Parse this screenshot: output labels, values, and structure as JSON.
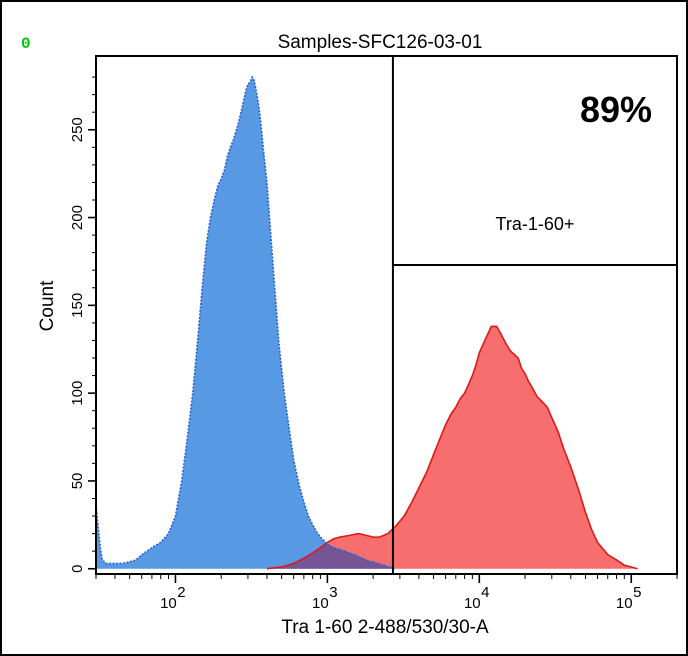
{
  "corner_label": "0",
  "colors": {
    "corner": "#00c800",
    "control": "#4a90e2",
    "control_stroke": "#2a62d0",
    "stained": "#f55a5a",
    "stained_stroke": "#e01818",
    "overlap": "#7b4a8a"
  },
  "chart_data": {
    "type": "area",
    "title": "Samples-SFC126-03-01",
    "xlabel": "Tra 1-60 2-488/530/30-A",
    "ylabel": "Count",
    "x_scale": "log",
    "xlim": [
      30,
      200000
    ],
    "ylim": [
      -3,
      292
    ],
    "x_ticks": [
      {
        "value": 100,
        "base": "10",
        "exp": "2"
      },
      {
        "value": 1000,
        "base": "10",
        "exp": "3"
      },
      {
        "value": 10000,
        "base": "10",
        "exp": "4"
      },
      {
        "value": 100000,
        "base": "10",
        "exp": "5"
      }
    ],
    "y_ticks": [
      {
        "value": 0,
        "label": "0"
      },
      {
        "value": 50,
        "label": "50"
      },
      {
        "value": 100,
        "label": "100"
      },
      {
        "value": 150,
        "label": "150"
      },
      {
        "value": 200,
        "label": "200"
      },
      {
        "value": 250,
        "label": "250"
      }
    ],
    "gate": {
      "name": "Tra-1-60+",
      "percent_label": "89%",
      "x_start": 2700,
      "x_end": 200000
    },
    "series": [
      {
        "x": [
          30,
          32,
          33,
          35,
          40,
          45,
          50,
          55,
          60,
          65,
          70,
          80,
          90,
          100,
          110,
          120,
          130,
          140,
          150,
          160,
          170,
          180,
          190,
          200,
          210,
          220,
          230,
          240,
          250,
          260,
          270,
          280,
          290,
          300,
          310,
          320,
          330,
          340,
          350,
          360,
          370,
          380,
          400,
          420,
          450,
          480,
          520,
          560,
          600,
          650,
          700,
          750,
          800,
          850,
          900,
          950,
          1000,
          1100,
          1200,
          1300,
          1400,
          1500,
          1600,
          1700,
          1800,
          1900,
          2000,
          2100,
          2200,
          2300,
          2400,
          2500,
          2600,
          2700,
          2800
        ],
        "y": [
          36,
          12,
          5,
          3,
          3,
          3,
          4,
          5,
          8,
          10,
          12,
          15,
          20,
          30,
          50,
          75,
          100,
          130,
          160,
          185,
          200,
          210,
          218,
          222,
          227,
          235,
          240,
          244,
          249,
          254,
          260,
          266,
          272,
          276,
          277,
          280,
          278,
          272,
          266,
          258,
          248,
          238,
          220,
          195,
          160,
          128,
          100,
          80,
          62,
          48,
          38,
          30,
          25,
          21,
          18,
          16,
          14,
          12,
          11,
          10,
          9,
          8,
          7,
          6,
          5,
          4,
          4,
          3,
          3,
          2,
          2,
          1,
          1,
          0,
          0
        ]
      },
      {
        "x": [
          400,
          500,
          600,
          700,
          800,
          900,
          1000,
          1100,
          1200,
          1400,
          1600,
          1800,
          2000,
          2200,
          2500,
          2800,
          3200,
          3600,
          4000,
          4500,
          5000,
          5500,
          6000,
          6500,
          7000,
          7500,
          8000,
          8500,
          9000,
          9500,
          10000,
          11000,
          12000,
          13000,
          14000,
          15000,
          16000,
          17000,
          18000,
          19000,
          20000,
          21000,
          22000,
          24000,
          26000,
          28000,
          30000,
          33000,
          36000,
          40000,
          45000,
          50000,
          55000,
          60000,
          70000,
          80000,
          90000,
          100000,
          110000
        ],
        "y": [
          0,
          1,
          3,
          6,
          9,
          12,
          15,
          17,
          18,
          19,
          20,
          19,
          18,
          18,
          20,
          24,
          30,
          38,
          46,
          55,
          65,
          74,
          82,
          88,
          92,
          97,
          100,
          105,
          110,
          116,
          123,
          131,
          138,
          138,
          133,
          128,
          124,
          122,
          120,
          114,
          111,
          107,
          104,
          98,
          95,
          92,
          86,
          78,
          68,
          58,
          45,
          32,
          22,
          15,
          8,
          5,
          2,
          1,
          0
        ]
      }
    ]
  }
}
